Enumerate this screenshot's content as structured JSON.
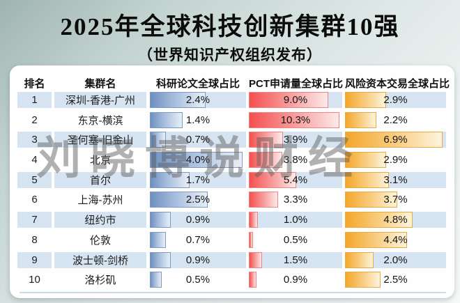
{
  "page": {
    "title": "2025年全球科技创新集群10强",
    "subtitle": "（世界知识产权组织发布）",
    "watermark": "刘晓博说财经"
  },
  "table": {
    "headers": {
      "rank": "排名",
      "name": "集群名",
      "papers": "科研论文全球占比",
      "pct": "PCT申请量全球占比",
      "vc": "风险资本交易全球占比"
    },
    "rows": [
      {
        "rank": "1",
        "name": "深圳-香港-广州",
        "papers": "2.4%",
        "pct": "9.0%",
        "vc": "2.9%"
      },
      {
        "rank": "2",
        "name": "东京-横滨",
        "papers": "1.4%",
        "pct": "10.3%",
        "vc": "2.2%"
      },
      {
        "rank": "3",
        "name": "圣何塞-旧金山",
        "papers": "0.7%",
        "pct": "3.9%",
        "vc": "6.9%"
      },
      {
        "rank": "4",
        "name": "北京",
        "papers": "4.0%",
        "pct": "3.8%",
        "vc": "2.9%"
      },
      {
        "rank": "5",
        "name": "首尔",
        "papers": "1.7%",
        "pct": "5.4%",
        "vc": "3.1%"
      },
      {
        "rank": "6",
        "name": "上海-苏州",
        "papers": "2.5%",
        "pct": "3.3%",
        "vc": "3.7%"
      },
      {
        "rank": "7",
        "name": "纽约市",
        "papers": "0.9%",
        "pct": "1.0%",
        "vc": "4.8%"
      },
      {
        "rank": "8",
        "name": "伦敦",
        "papers": "0.7%",
        "pct": "0.5%",
        "vc": "4.4%"
      },
      {
        "rank": "9",
        "name": "波士顿-剑桥",
        "papers": "0.9%",
        "pct": "1.5%",
        "vc": "2.0%"
      },
      {
        "rank": "10",
        "name": "洛杉矶",
        "papers": "0.5%",
        "pct": "0.9%",
        "vc": "2.5%"
      }
    ]
  },
  "chart_data": {
    "type": "bar",
    "title": "2025年全球科技创新集群10强",
    "subtitle": "（世界知识产权组织发布）",
    "categories": [
      "深圳-香港-广州",
      "东京-横滨",
      "圣何塞-旧金山",
      "北京",
      "首尔",
      "上海-苏州",
      "纽约市",
      "伦敦",
      "波士顿-剑桥",
      "洛杉矶"
    ],
    "ranks": [
      1,
      2,
      3,
      4,
      5,
      6,
      7,
      8,
      9,
      10
    ],
    "unit": "%",
    "series": [
      {
        "key": "papers",
        "name": "科研论文全球占比",
        "values": [
          2.4,
          1.4,
          0.7,
          4.0,
          1.7,
          2.5,
          0.9,
          0.7,
          0.9,
          0.5
        ],
        "color": "#6e90c0",
        "axis_max": 4.15
      },
      {
        "key": "pct",
        "name": "PCT申请量全球占比",
        "values": [
          9.0,
          10.3,
          3.9,
          3.8,
          5.4,
          3.3,
          1.0,
          0.5,
          1.5,
          0.9
        ],
        "color": "#f4504e",
        "axis_max": 10.6
      },
      {
        "key": "vc",
        "name": "风险资本交易全球占比",
        "values": [
          2.9,
          2.2,
          6.9,
          2.9,
          3.1,
          3.7,
          4.8,
          4.4,
          2.0,
          2.5
        ],
        "color": "#f4a72b",
        "axis_max": 7.15
      }
    ],
    "legend_position": "none",
    "grid": false,
    "bar_direction": "horizontal",
    "row_band_color": "#d6e3f0"
  },
  "colors": {
    "papers_bar": "#6e90c0",
    "pct_bar": "#f4504e",
    "vc_bar": "#f4a72b",
    "row_band": "#d6e3f0",
    "card_background": "#fefefe",
    "title_text": "#0c0c0c",
    "bottom_divider": "#c9dae2"
  }
}
